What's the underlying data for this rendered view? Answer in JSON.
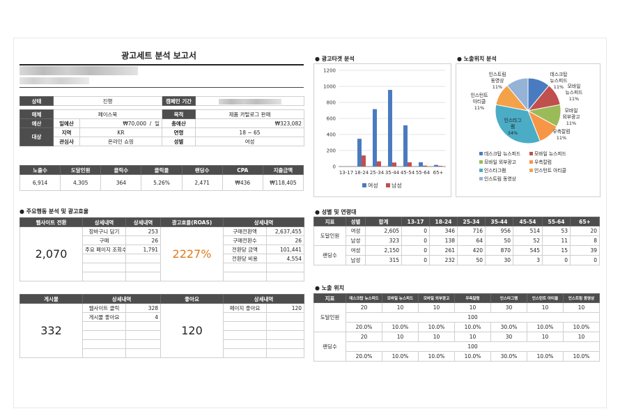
{
  "report": {
    "title": "광고세트 분석 보고서"
  },
  "info": {
    "status_label": "상태",
    "status_value": "진행",
    "period_label": "캠페인 기간",
    "media_label": "매체",
    "media_value": "페이스북",
    "goal_label": "목적",
    "goal_value": "제품 카탈로그 판매",
    "budget_label": "예산",
    "daily_budget_label": "일예산",
    "daily_budget_value": "₩70,000",
    "budget_sep": "/",
    "budget_unit": "일",
    "total_budget_label": "총예산",
    "total_budget_value": "₩323,082",
    "target_label": "대상",
    "region_label": "지역",
    "region_value": "KR",
    "age_label": "연령",
    "age_value": "18 ~ 65",
    "interest_label": "관심사",
    "interest_value": "온라인 쇼핑",
    "gender_label": "성별",
    "gender_value": "여성"
  },
  "metrics": {
    "headers": [
      "노출수",
      "도달인원",
      "클릭수",
      "클릭율",
      "랜딩수",
      "CPA",
      "지출금액"
    ],
    "values": [
      "6,914",
      "4,305",
      "364",
      "5.26%",
      "2,471",
      "₩436",
      "₩118,405"
    ]
  },
  "actions": {
    "title": "● 주요행동 분석 및 광고효율",
    "web_header": "웹사이트 전환",
    "detail_header": "상세내역",
    "detail_header2": "상세내역",
    "roas_header": "광고효율(ROAS)",
    "detail_header3": "상세내역",
    "web_value": "2,070",
    "web_details": [
      {
        "label": "장바구니 담기",
        "value": "253"
      },
      {
        "label": "구매",
        "value": "26"
      },
      {
        "label": "주요 페이지 조회수",
        "value": "1,791"
      }
    ],
    "roas_value": "2227%",
    "roas_details": [
      {
        "label": "구매전환액",
        "value": "2,637,455"
      },
      {
        "label": "구매전환수",
        "value": "26"
      },
      {
        "label": "전환당 금액",
        "value": "101,441"
      },
      {
        "label": "전환당 비용",
        "value": "4,554"
      }
    ],
    "post_header": "게시물",
    "post_detail_header": "상세내역",
    "like_header": "좋아요",
    "like_detail_header": "상세내역",
    "post_value": "332",
    "post_details": [
      {
        "label": "웹사이트 클릭",
        "value": "328"
      },
      {
        "label": "게시물 좋아요",
        "value": "4"
      }
    ],
    "like_value": "120",
    "like_details": [
      {
        "label": "페이지 좋아요",
        "value": "120"
      }
    ]
  },
  "target_chart": {
    "section_title": "● 광고타겟 분석",
    "chart_data": {
      "type": "bar",
      "categories": [
        "13-17",
        "18-24",
        "25-34",
        "35-44",
        "45-54",
        "55-64",
        "65+"
      ],
      "series": [
        {
          "name": "여성",
          "values": [
            0,
            346,
            716,
            956,
            514,
            53,
            20
          ],
          "color": "#4a7bc0"
        },
        {
          "name": "남성",
          "values": [
            0,
            138,
            64,
            50,
            52,
            11,
            8
          ],
          "color": "#c0504d"
        }
      ],
      "ylim": [
        0,
        1200
      ],
      "yticks": [
        "0",
        "200",
        "400",
        "600",
        "800",
        "1000",
        "1200"
      ]
    }
  },
  "placement_chart": {
    "section_title": "● 노출위치 분석",
    "chart_data": {
      "type": "pie",
      "slices": [
        {
          "name": "데스크탑 뉴스피드",
          "label": "데스크탑\n뉴스피드",
          "pct": "11%",
          "value": 11,
          "color": "#4a7bc0"
        },
        {
          "name": "모바일 뉴스피드",
          "label": "모바일\n뉴스피드",
          "pct": "11%",
          "value": 11,
          "color": "#c0504d"
        },
        {
          "name": "모바일 외부광고",
          "label": "모바일\n외부광고",
          "pct": "11%",
          "value": 11,
          "color": "#9bbb59"
        },
        {
          "name": "우측칼럼",
          "label": "우측칼럼",
          "pct": "11%",
          "value": 11,
          "color": "#f79646"
        },
        {
          "name": "인스타그램",
          "label": "인스타그\n램",
          "pct": "34%",
          "value": 34,
          "color": "#4bacc6"
        },
        {
          "name": "인스턴트 아티클",
          "label": "인스턴트\n아티클",
          "pct": "11%",
          "value": 11,
          "color": "#f3a24a"
        },
        {
          "name": "인스트림 동영상",
          "label": "인스트림\n동영상",
          "pct": "11%",
          "value": 11,
          "color": "#95b3d7"
        }
      ],
      "legend": [
        "데스크탑 뉴스피드",
        "모바일 뉴스피드",
        "모바일 외부광고",
        "우측칼럼",
        "인스타그램",
        "인스턴트 아티클",
        "인스트림 동영상"
      ]
    }
  },
  "gender_age": {
    "title": "● 성별 및 연령대",
    "headers": [
      "지표",
      "성별",
      "합계",
      "13-17",
      "18-24",
      "25-34",
      "35-44",
      "45-54",
      "55-64",
      "65+"
    ],
    "rows": [
      {
        "metric": "도달인원",
        "gender": "여성",
        "values": [
          "2,605",
          "0",
          "346",
          "716",
          "956",
          "514",
          "53",
          "20"
        ]
      },
      {
        "metric": "",
        "gender": "남성",
        "values": [
          "323",
          "0",
          "138",
          "64",
          "50",
          "52",
          "11",
          "8"
        ]
      },
      {
        "metric": "랜딩수",
        "gender": "여성",
        "values": [
          "2,150",
          "0",
          "261",
          "420",
          "870",
          "545",
          "15",
          "39"
        ]
      },
      {
        "metric": "",
        "gender": "남성",
        "values": [
          "315",
          "0",
          "232",
          "50",
          "30",
          "3",
          "0",
          "0"
        ]
      }
    ]
  },
  "placement": {
    "title": "● 노출 위치",
    "headers": [
      "지표",
      "데스크탑 뉴스피드",
      "모바일 뉴스피드",
      "모바일 외부광고",
      "우측칼럼",
      "인스타그램",
      "인스턴트 아티클",
      "인스트림 동영상"
    ],
    "reach_label": "도달인원",
    "landing_label": "랜딩수",
    "reach_counts": [
      "20",
      "10",
      "10",
      "10",
      "30",
      "10",
      "10"
    ],
    "reach_total": "100",
    "reach_pcts": [
      "20.0%",
      "10.0%",
      "10.0%",
      "10.0%",
      "30.0%",
      "10.0%",
      "10.0%"
    ],
    "landing_counts": [
      "20",
      "10",
      "10",
      "10",
      "30",
      "10",
      "10"
    ],
    "landing_total": "100",
    "landing_pcts": [
      "20.0%",
      "10.0%",
      "10.0%",
      "10.0%",
      "30.0%",
      "10.0%",
      "10.0%"
    ]
  }
}
